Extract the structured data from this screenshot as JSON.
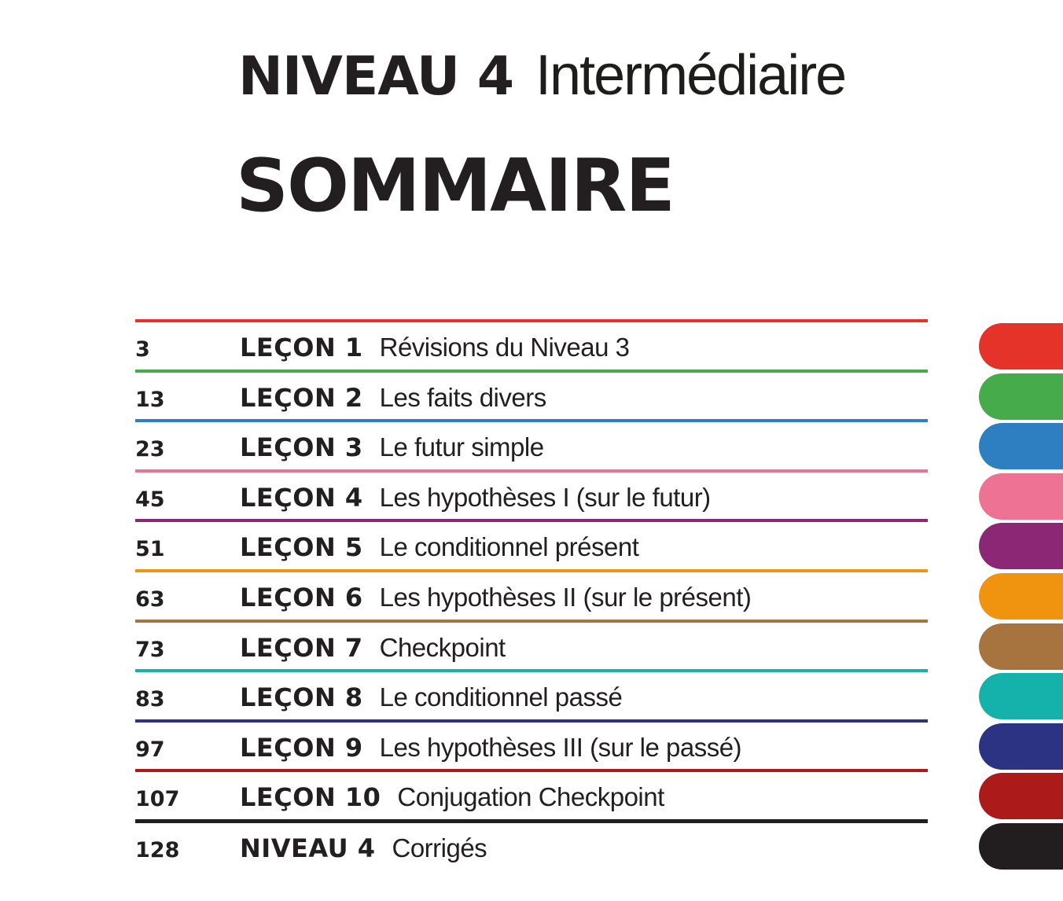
{
  "header": {
    "level_title": "NIVEAU 4",
    "level_subtitle": "Intermédiaire",
    "heading": "SOMMAIRE"
  },
  "text_color": "#231f20",
  "toc": {
    "entries": [
      {
        "page": "3",
        "label": "LEÇON 1",
        "title": "Révisions du Niveau 3",
        "color": "#e6332a"
      },
      {
        "page": "13",
        "label": "LEÇON 2",
        "title": "Les faits divers",
        "color": "#46ab4a"
      },
      {
        "page": "23",
        "label": "LEÇON 3",
        "title": "Le futur simple",
        "color": "#2d7fc2"
      },
      {
        "page": "45",
        "label": "LEÇON 4",
        "title": "Les hypothèses I (sur le futur)",
        "color": "#ee7294"
      },
      {
        "page": "51",
        "label": "LEÇON 5",
        "title": "Le conditionnel présent",
        "color": "#8b2775"
      },
      {
        "page": "63",
        "label": "LEÇON 6",
        "title": "Les hypothèses II (sur le présent)",
        "color": "#f0930f"
      },
      {
        "page": "73",
        "label": "LEÇON 7",
        "title": "Checkpoint",
        "color": "#a7743f"
      },
      {
        "page": "83",
        "label": "LEÇON 8",
        "title": "Le conditionnel passé",
        "color": "#14b2aa"
      },
      {
        "page": "97",
        "label": "LEÇON 9",
        "title": "Les hypothèses III (sur le passé)",
        "color": "#2d3383"
      },
      {
        "page": "107",
        "label": "LEÇON 10",
        "title": "Conjugation Checkpoint",
        "color": "#ad1a1a"
      },
      {
        "page": "128",
        "label": "NIVEAU 4",
        "title": "Corrigés",
        "color": "#221e1f"
      }
    ]
  },
  "tabs": [
    {
      "name": "red",
      "color": "#e6332a"
    },
    {
      "name": "green",
      "color": "#46ab4a"
    },
    {
      "name": "blue",
      "color": "#2d7fc2"
    },
    {
      "name": "pink",
      "color": "#ee7294"
    },
    {
      "name": "purple",
      "color": "#8b2775"
    },
    {
      "name": "orange",
      "color": "#f0930f"
    },
    {
      "name": "brown",
      "color": "#a7743f"
    },
    {
      "name": "teal",
      "color": "#14b2aa"
    },
    {
      "name": "navy",
      "color": "#2d3383"
    },
    {
      "name": "dark-red",
      "color": "#ad1a1a"
    },
    {
      "name": "black",
      "color": "#221e1f"
    }
  ]
}
